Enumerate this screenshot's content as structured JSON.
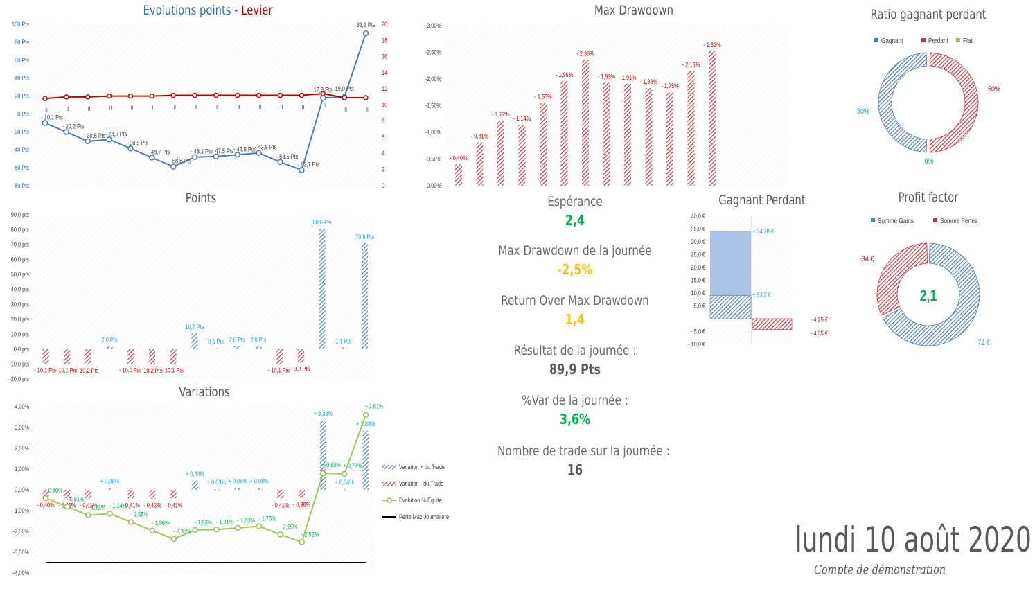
{
  "colors": {
    "blue": "#4a7ebb",
    "red": "#d0323c",
    "green": "#00b050",
    "cyan": "#1aa2d8",
    "gold": "#ffc000",
    "olive": "#9bbb59",
    "gray": "#595959",
    "lightgreen": "#92d050"
  },
  "chart_data": [
    {
      "id": "evolution",
      "type": "line",
      "title_part1": "Evolutions points",
      "title_sep": " - ",
      "title_part2": "Levier",
      "ylim": [
        -80,
        100
      ],
      "y_ticks": [
        "100 Pts",
        "80 Pts",
        "60 Pts",
        "40 Pts",
        "20 Pts",
        "0 Pts",
        "-20 Pts",
        "-40 Pts",
        "-60 Pts",
        "-80 Pts"
      ],
      "y2lim": [
        0,
        20
      ],
      "y2_ticks": [
        "20",
        "18",
        "16",
        "14",
        "12",
        "10",
        "8",
        "6",
        "4",
        "2",
        "0"
      ],
      "category_labels": [
        "II",
        "II",
        "II",
        "II",
        "II",
        "II",
        "II",
        "II",
        "II",
        "II",
        "II",
        "II",
        "II",
        "II",
        "II",
        "II"
      ],
      "series": [
        {
          "name": "Points",
          "values": [
            -10.1,
            -20.2,
            -30.5,
            -28.5,
            -38.5,
            -48.7,
            -58.8,
            -48.1,
            -47.5,
            -45.5,
            -43.5,
            -53.6,
            -62.7,
            17.9,
            19.0,
            89.9
          ],
          "labels": [
            "- 10,1 Pts",
            "- 20,2 Pts",
            "- 30,5 Pts",
            "- 28,5 Pts",
            "- 38,5 Pts",
            "- 48,7 Pts",
            "- 58,8 Pts",
            "- 48,1 Pts",
            "- 47,5 Pts",
            "- 45,5 Pts",
            "- 43,5 Pts",
            "- 53,6 Pts",
            "- 62,7 Pts",
            "17,9 Pts",
            "19,0 Pts",
            "89,9 Pts"
          ]
        },
        {
          "name": "Levier",
          "values": [
            10.8,
            11,
            11,
            11.1,
            11.1,
            11.1,
            11.2,
            11.2,
            11.2,
            11.2,
            11.2,
            11.2,
            11.2,
            11.4,
            10.9,
            10.9
          ]
        }
      ]
    },
    {
      "id": "drawdown",
      "type": "bar",
      "title": "Max Drawdown",
      "ylim": [
        0,
        -3
      ],
      "y_ticks": [
        "-3,00%",
        "-2,50%",
        "-2,00%",
        "-1,50%",
        "-1,00%",
        "-0,50%",
        "0,00%"
      ],
      "values": [
        -0.4,
        -0.81,
        -1.22,
        -1.14,
        -1.55,
        -1.96,
        -2.36,
        -1.93,
        -1.91,
        -1.83,
        -1.75,
        -2.15,
        -2.52
      ],
      "labels": [
        "- 0,40%",
        "- 0,81%",
        "- 1,22%",
        "- 1,14%",
        "- 1,55%",
        "- 1,96%",
        "- 2,36%",
        "- 1,93%",
        "- 1,91%",
        "- 1,83%",
        "- 1,75%",
        "- 2,15%",
        "- 2,52%"
      ]
    },
    {
      "id": "points",
      "type": "bar",
      "title": "Points",
      "ylim": [
        -20,
        90
      ],
      "y_ticks": [
        "90,0 pts",
        "80,0 pts",
        "70,0 pts",
        "60,0 pts",
        "50,0 pts",
        "40,0 pts",
        "30,0 pts",
        "20,0 pts",
        "10,0 pts",
        "0,0 pts",
        "-10,0 pts",
        "-20,0 pts"
      ],
      "values": [
        -10.1,
        -10.1,
        -10.2,
        2.0,
        -10.0,
        -10.2,
        -10.1,
        10.7,
        0.6,
        2.0,
        2.0,
        -10.1,
        -9.2,
        80.6,
        1.1,
        70.9
      ],
      "labels": [
        "- 10,1 Pts",
        "- 10,1 Pts",
        "- 10,2 Pts",
        "2,0 Pts",
        "- 10,0 Pts",
        "- 10,2 Pts",
        "- 10,1 Pts",
        "10,7 Pts",
        "0,6 Pts",
        "2,0 Pts",
        "2,0 Pts",
        "- 10,1 Pts",
        "- 9,2 Pts",
        "80,6 Pts",
        "1,1 Pts",
        "70,9 Pts"
      ]
    },
    {
      "id": "variations",
      "type": "bar",
      "title": "Variations",
      "ylim": [
        -4,
        4
      ],
      "y_ticks": [
        "4,00%",
        "3,00%",
        "2,00%",
        "1,00%",
        "0,00%",
        "-1,00%",
        "-2,00%",
        "-3,00%",
        "-4,00%"
      ],
      "series": [
        {
          "name": "Variation + du Trade",
          "values": [
            0,
            0,
            0,
            0.08,
            0,
            0,
            0,
            0.44,
            0.03,
            0.08,
            0.08,
            0,
            0,
            3.33,
            0.04,
            2.83
          ],
          "labels": [
            "",
            "",
            "",
            "+ 0,08%",
            "",
            "",
            "",
            "+ 0,44%",
            "+ 0,03%",
            "+ 0,08%",
            "+ 0,08%",
            "",
            "",
            "+ 3,33%",
            "+ 0,04%",
            "+ 2,83%"
          ]
        },
        {
          "name": "Variation - du Trade",
          "values": [
            -0.4,
            -0.41,
            -0.41,
            0,
            -0.41,
            -0.42,
            -0.41,
            0,
            0,
            0,
            0,
            -0.41,
            -0.38,
            0,
            0,
            0
          ],
          "labels": [
            "- 0,40%",
            "- 0,41%",
            "- 0,41%",
            "",
            "- 0,41%",
            "- 0,42%",
            "- 0,41%",
            "",
            "",
            "",
            "",
            "- 0,41%",
            "- 0,38%",
            "",
            "",
            ""
          ]
        },
        {
          "name": "Evolution % Equité",
          "values": [
            -0.4,
            -0.81,
            -1.22,
            -1.14,
            -1.55,
            -1.96,
            -2.36,
            -1.93,
            -1.91,
            -1.83,
            -1.75,
            -2.15,
            -2.52,
            0.8,
            0.77,
            3.61
          ],
          "labels": [
            "- 0,40%",
            "- 0,81%",
            "- 1,22%",
            "- 1,14%",
            "- 1,55%",
            "- 1,96%",
            "- 2,36%",
            "- 1,93%",
            "- 1,91%",
            "- 1,83%",
            "- 1,75%",
            "- 2,15%",
            "- 2,52%",
            "+ 0,80%",
            "+ 0,77%",
            "+ 3,61%"
          ]
        },
        {
          "name": "Perte Max Journalière",
          "value": -3.5
        }
      ]
    },
    {
      "id": "ratio",
      "type": "pie",
      "title": "Ratio gagnant perdant",
      "legend": [
        "Gagnant",
        "Perdant",
        "Flat"
      ],
      "values": [
        50,
        50,
        0
      ],
      "labels": [
        "50%",
        "50%",
        "0%"
      ]
    },
    {
      "id": "gp",
      "type": "bar",
      "title": "Gagnant Perdant",
      "ylim": [
        -10,
        40
      ],
      "y_ticks": [
        "40,0 €",
        "35,0 €",
        "30,0 €",
        "25,0 €",
        "20,0 €",
        "15,0 €",
        "10,0 €",
        "5,0 €",
        "",
        "- 5,0 €",
        "- 10,0 €"
      ],
      "gains": [
        34.28,
        9.02
      ],
      "gain_labels": [
        "+ 34,28 €",
        "+ 9,02 €"
      ],
      "losses": [
        -4.25,
        -4.35
      ],
      "loss_labels": [
        "- 4,25 €",
        "- 4,35 €"
      ]
    },
    {
      "id": "profit",
      "type": "pie",
      "title": "Profit factor",
      "legend": [
        "Somme Gains",
        "Somme Pertes"
      ],
      "values": [
        72,
        34
      ],
      "labels": [
        "72 €",
        "-34 €"
      ],
      "center": "2,1"
    }
  ],
  "kpis": {
    "esperance_label": "Espérance",
    "esperance_value": "2,4",
    "mdd_label": "Max Drawdown de la journée",
    "mdd_value": "-2,5%",
    "romd_label": "Return Over Max Drawdown",
    "romd_value": "1,4",
    "result_label": "Résultat de la journée :",
    "result_value": "89,9 Pts",
    "var_label": "%Var de la journée :",
    "var_value": "3,6%",
    "ntrades_label": "Nombre de trade sur la journée :",
    "ntrades_value": "16"
  },
  "footer": {
    "date": "lundi 10 août 2020",
    "account": "Compte de démonstration"
  }
}
